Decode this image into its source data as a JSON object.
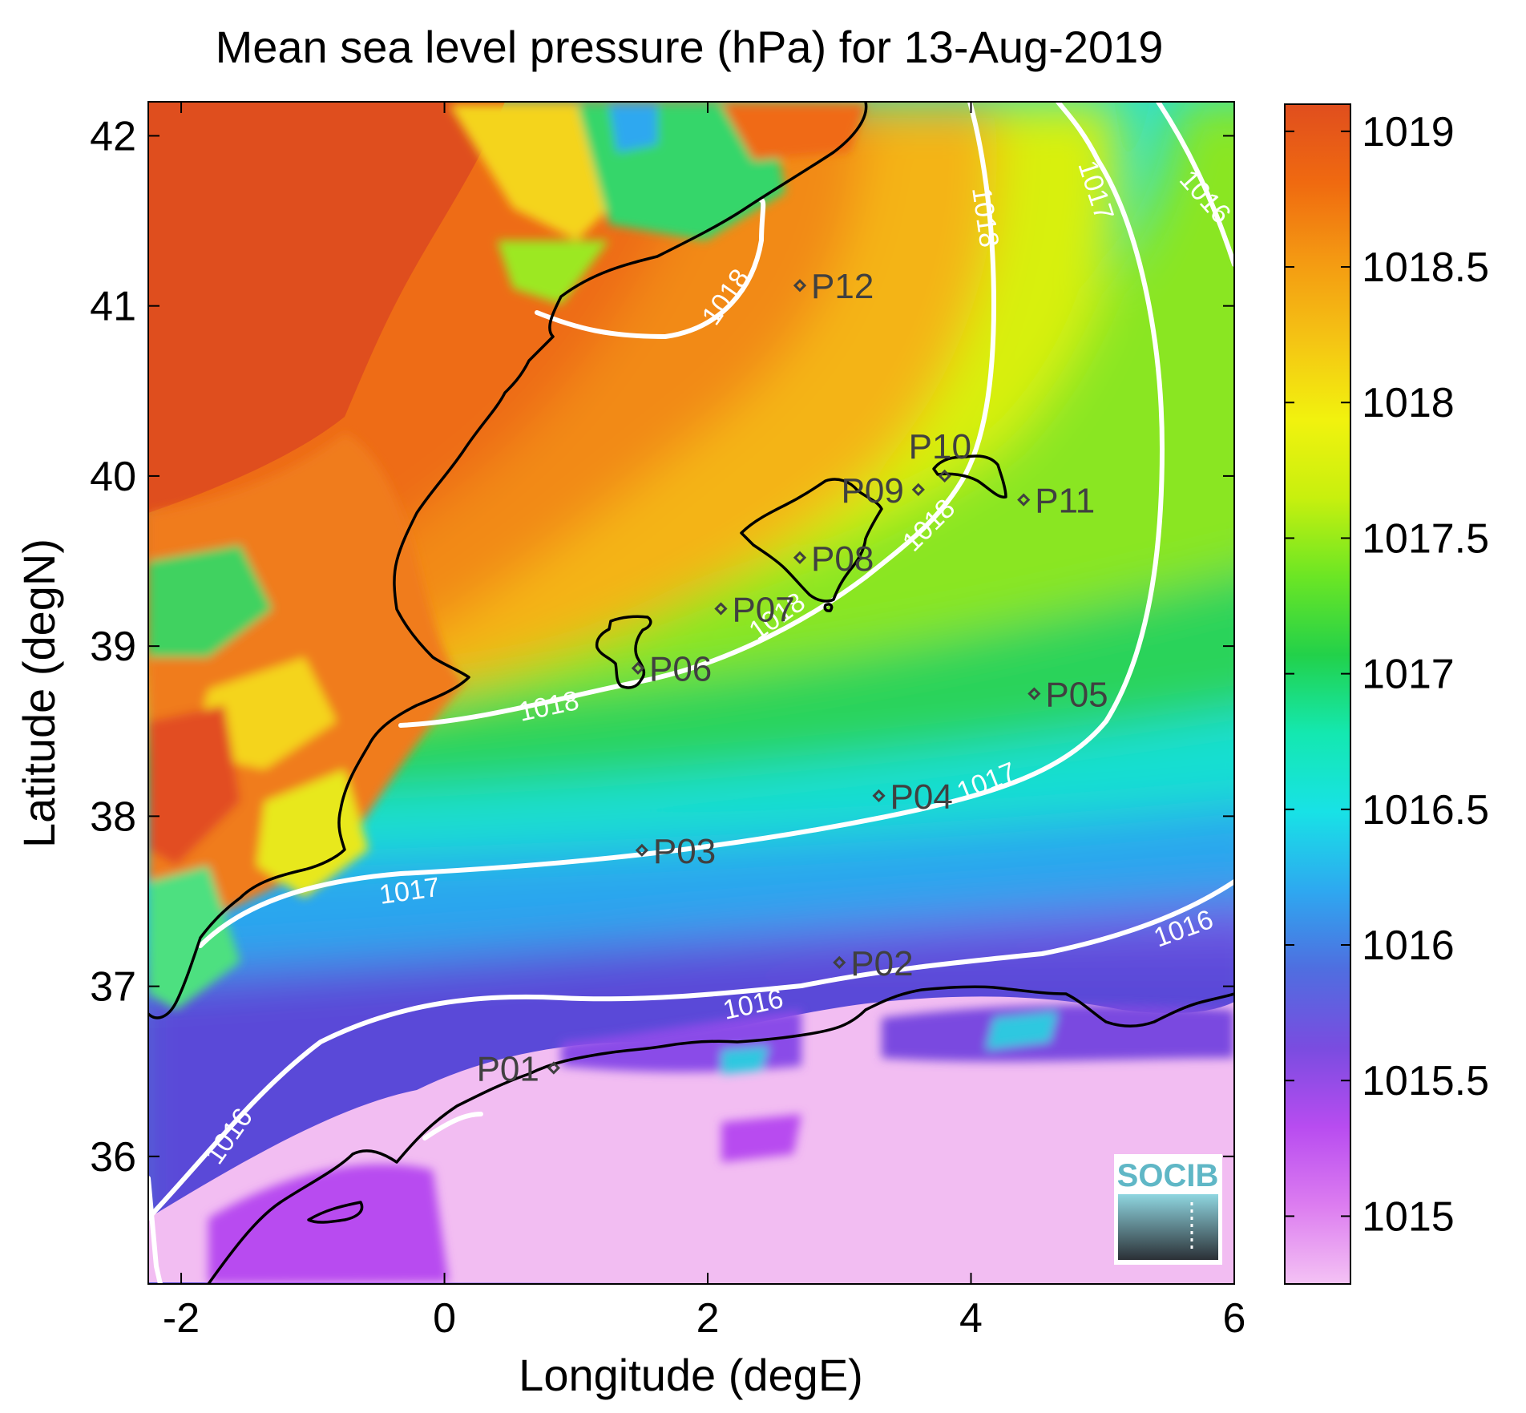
{
  "title": "Mean sea level pressure (hPa) for 13-Aug-2019",
  "xlabel": "Longitude (degE)",
  "ylabel": "Latitude (degN)",
  "x_ticks": [
    "-2",
    "0",
    "2",
    "4",
    "6"
  ],
  "y_ticks": [
    "36",
    "37",
    "38",
    "39",
    "40",
    "41",
    "42"
  ],
  "colorbar": {
    "min": 1014.75,
    "max": 1019.1,
    "ticks": [
      "1015",
      "1015.5",
      "1016",
      "1016.5",
      "1017",
      "1017.5",
      "1018",
      "1018.5",
      "1019"
    ],
    "colors": [
      "#f4c2f4",
      "#dc7cf0",
      "#b84cf0",
      "#7a4ce0",
      "#4f6ee0",
      "#2ea8f0",
      "#18e2e6",
      "#14e8b0",
      "#22d14a",
      "#6ce624",
      "#c8f00e",
      "#f2f20e",
      "#f4c414",
      "#f49a12",
      "#f06a10",
      "#e04e1e"
    ]
  },
  "contour_labels": [
    "1016",
    "1016",
    "1016",
    "1016",
    "1017",
    "1017",
    "1017",
    "1018",
    "1018",
    "1018",
    "1018",
    "1018"
  ],
  "stations": [
    {
      "name": "P01",
      "lon": 0.83,
      "lat": 36.52
    },
    {
      "name": "P02",
      "lon": 3.0,
      "lat": 37.14
    },
    {
      "name": "P03",
      "lon": 1.5,
      "lat": 37.8
    },
    {
      "name": "P04",
      "lon": 3.3,
      "lat": 38.12
    },
    {
      "name": "P05",
      "lon": 4.48,
      "lat": 38.72
    },
    {
      "name": "P06",
      "lon": 1.47,
      "lat": 38.87
    },
    {
      "name": "P07",
      "lon": 2.1,
      "lat": 39.22
    },
    {
      "name": "P08",
      "lon": 2.7,
      "lat": 39.52
    },
    {
      "name": "P09",
      "lon": 3.6,
      "lat": 39.92
    },
    {
      "name": "P10",
      "lon": 3.8,
      "lat": 40.0
    },
    {
      "name": "P11",
      "lon": 4.4,
      "lat": 39.86
    },
    {
      "name": "P12",
      "lon": 2.7,
      "lat": 41.12
    }
  ],
  "logo_text": "SOCIB"
}
